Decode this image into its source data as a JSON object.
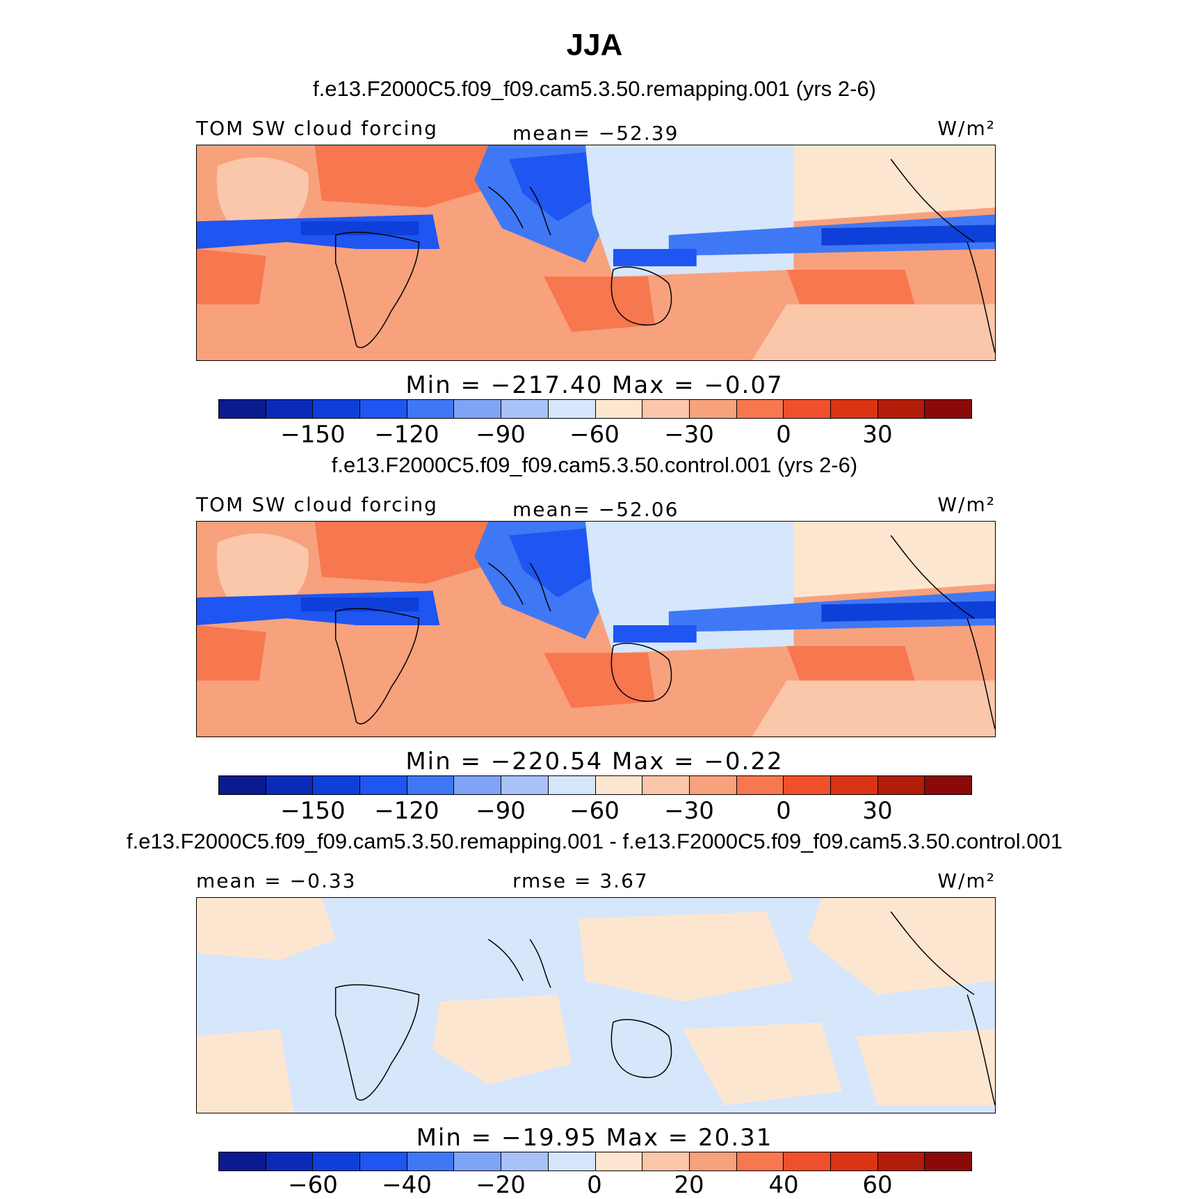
{
  "figure": {
    "title": "JJA"
  },
  "colors": [
    "#0a1a8f",
    "#0a2bb8",
    "#0f3fd9",
    "#1f55f0",
    "#3f78f5",
    "#7fa3f7",
    "#a8c2f7",
    "#d6e6fb",
    "#fde6d0",
    "#fbc7ab",
    "#f8a17d",
    "#f7774f",
    "#f1502d",
    "#d93515",
    "#b21d0a",
    "#8a0a0a"
  ],
  "panels": [
    {
      "case_title": "f.e13.F2000C5.f09_f09.cam5.3.50.remapping.001 (yrs 2-6)",
      "variable_label": "TOM SW cloud forcing",
      "stat_text": "mean= −52.39",
      "units": "W/m²",
      "min_max_text": "Min = −217.40 Max = −0.07",
      "tick_labels": [
        "−150",
        "−120",
        "−90",
        "−60",
        "−30",
        "0",
        "30"
      ]
    },
    {
      "case_title": "f.e13.F2000C5.f09_f09.cam5.3.50.control.001 (yrs 2-6)",
      "variable_label": "TOM SW cloud forcing",
      "stat_text": "mean= −52.06",
      "units": "W/m²",
      "min_max_text": "Min = −220.54 Max = −0.22",
      "tick_labels": [
        "−150",
        "−120",
        "−90",
        "−60",
        "−30",
        "0",
        "30"
      ]
    },
    {
      "case_title": "f.e13.F2000C5.f09_f09.cam5.3.50.remapping.001 - f.e13.F2000C5.f09_f09.cam5.3.50.control.001",
      "variable_label": "mean = −0.33",
      "stat_text": "rmse = 3.67",
      "units": "W/m²",
      "min_max_text": "Min = −19.95 Max = 20.31",
      "tick_labels": [
        "−60",
        "−40",
        "−20",
        "0",
        "20",
        "40",
        "60"
      ]
    }
  ]
}
